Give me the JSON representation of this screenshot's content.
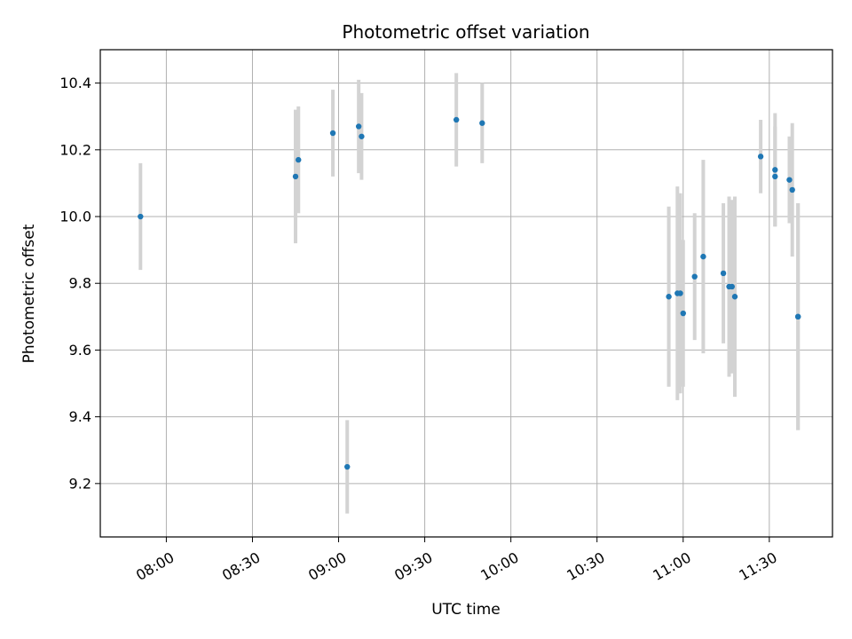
{
  "chart_data": {
    "type": "scatter",
    "title": "Photometric offset variation",
    "xlabel": "UTC time",
    "ylabel": "Photometric offset",
    "grid": true,
    "xlim": [
      "07:37",
      "11:52"
    ],
    "ylim": [
      9.04,
      10.5
    ],
    "x_ticks": [
      "08:00",
      "08:30",
      "09:00",
      "09:30",
      "10:00",
      "10:30",
      "11:00",
      "11:30"
    ],
    "y_ticks": [
      "9.2",
      "9.4",
      "9.6",
      "9.8",
      "10.0",
      "10.2",
      "10.4"
    ],
    "colors": {
      "point": "#1f77b4",
      "error_bar": "#d3d3d3",
      "grid": "#b0b0b0"
    },
    "points": [
      {
        "x": "07:51",
        "y": 10.0,
        "err": 0.16
      },
      {
        "x": "08:45",
        "y": 10.12,
        "err": 0.2
      },
      {
        "x": "08:46",
        "y": 10.17,
        "err": 0.16
      },
      {
        "x": "08:58",
        "y": 10.25,
        "err": 0.13
      },
      {
        "x": "09:03",
        "y": 9.25,
        "err": 0.14
      },
      {
        "x": "09:07",
        "y": 10.27,
        "err": 0.14
      },
      {
        "x": "09:08",
        "y": 10.24,
        "err": 0.13
      },
      {
        "x": "09:41",
        "y": 10.29,
        "err": 0.14
      },
      {
        "x": "09:50",
        "y": 10.28,
        "err": 0.12
      },
      {
        "x": "10:55",
        "y": 9.76,
        "err": 0.27
      },
      {
        "x": "10:58",
        "y": 9.77,
        "err": 0.32
      },
      {
        "x": "10:59",
        "y": 9.77,
        "err": 0.3
      },
      {
        "x": "11:00",
        "y": 9.71,
        "err": 0.22
      },
      {
        "x": "11:04",
        "y": 9.82,
        "err": 0.19
      },
      {
        "x": "11:07",
        "y": 9.88,
        "err": 0.29
      },
      {
        "x": "11:14",
        "y": 9.83,
        "err": 0.21
      },
      {
        "x": "11:16",
        "y": 9.79,
        "err": 0.27
      },
      {
        "x": "11:17",
        "y": 9.79,
        "err": 0.26
      },
      {
        "x": "11:18",
        "y": 9.76,
        "err": 0.3
      },
      {
        "x": "11:27",
        "y": 10.18,
        "err": 0.11
      },
      {
        "x": "11:32",
        "y": 10.14,
        "err": 0.17
      },
      {
        "x": "11:32",
        "y": 10.12,
        "err": 0.15
      },
      {
        "x": "11:37",
        "y": 10.11,
        "err": 0.13
      },
      {
        "x": "11:38",
        "y": 10.08,
        "err": 0.2
      },
      {
        "x": "11:40",
        "y": 9.7,
        "err": 0.34
      },
      {
        "x": "11:40",
        "y": 9.7,
        "err": 0.34
      }
    ]
  }
}
